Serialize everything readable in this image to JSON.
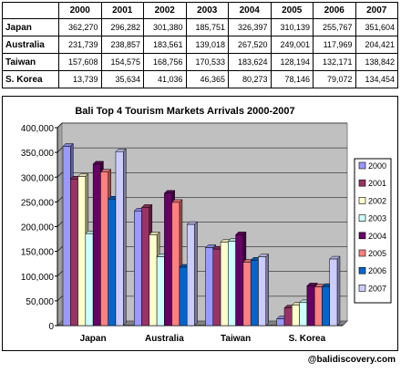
{
  "table": {
    "header": [
      "",
      "2000",
      "2001",
      "2002",
      "2003",
      "2004",
      "2005",
      "2006",
      "2007"
    ],
    "rows": [
      {
        "name": "Japan",
        "values": [
          "362,270",
          "296,282",
          "301,380",
          "185,751",
          "326,397",
          "310,139",
          "255,767",
          "351,604"
        ]
      },
      {
        "name": "Australia",
        "values": [
          "231,739",
          "238,857",
          "183,561",
          "139,018",
          "267,520",
          "249,001",
          "117,969",
          "204,421"
        ]
      },
      {
        "name": "Taiwan",
        "values": [
          "157,608",
          "154,575",
          "168,756",
          "170,533",
          "183,624",
          "128,194",
          "132,171",
          "138,842"
        ]
      },
      {
        "name": "S. Korea",
        "values": [
          "13,739",
          "35,634",
          "41,036",
          "46,365",
          "80,273",
          "78,146",
          "79,072",
          "134,454"
        ]
      }
    ]
  },
  "chart_data": {
    "type": "bar",
    "title": "Bali Top 4 Tourism Markets Arrivals 2000-2007",
    "categories": [
      "Japan",
      "Australia",
      "Taiwan",
      "S. Korea"
    ],
    "series": [
      {
        "name": "2000",
        "color": "#9999ff",
        "values": [
          362270,
          231739,
          157608,
          13739
        ]
      },
      {
        "name": "2001",
        "color": "#993366",
        "values": [
          296282,
          238857,
          154575,
          35634
        ]
      },
      {
        "name": "2002",
        "color": "#ffffcc",
        "values": [
          301380,
          183561,
          168756,
          41036
        ]
      },
      {
        "name": "2003",
        "color": "#ccffff",
        "values": [
          185751,
          139018,
          170533,
          46365
        ]
      },
      {
        "name": "2004",
        "color": "#660066",
        "values": [
          326397,
          267520,
          183624,
          80273
        ]
      },
      {
        "name": "2005",
        "color": "#ff8080",
        "values": [
          310139,
          249001,
          128194,
          78146
        ]
      },
      {
        "name": "2006",
        "color": "#0066cc",
        "values": [
          255767,
          117969,
          132171,
          79072
        ]
      },
      {
        "name": "2007",
        "color": "#ccccff",
        "values": [
          351604,
          204421,
          138842,
          134454
        ]
      }
    ],
    "ylim": [
      0,
      400000
    ],
    "yticks": [
      "0",
      "50,000",
      "100,000",
      "150,000",
      "200,000",
      "250,000",
      "300,000",
      "350,000",
      "400,000"
    ],
    "ytick_values": [
      0,
      50000,
      100000,
      150000,
      200000,
      250000,
      300000,
      350000,
      400000
    ],
    "grid": true,
    "legend_position": "right",
    "plot_background": "#c0c0c0"
  },
  "credit": "@balidiscovery.com"
}
